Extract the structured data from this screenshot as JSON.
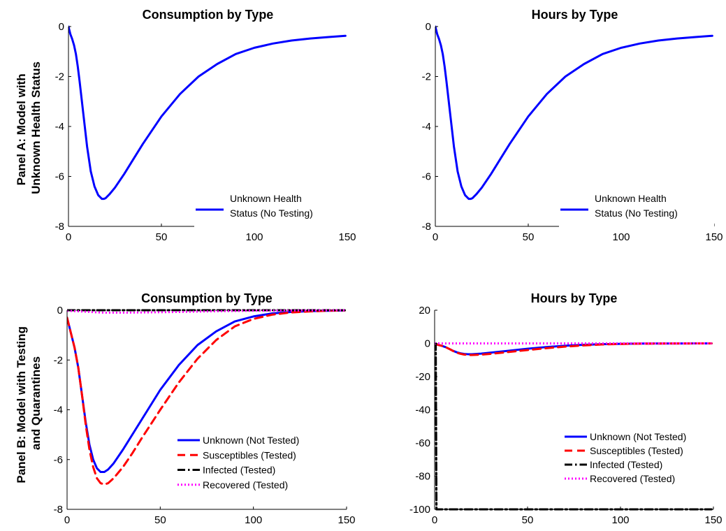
{
  "panel_labels": {
    "a": [
      "Panel A: Model with",
      "Unknown Health Status"
    ],
    "b": [
      "Panel B: Model with Testing",
      "and Quarantines"
    ]
  },
  "chart_data": [
    {
      "type": "line",
      "title": "Consumption by Type",
      "xlabel": "",
      "ylabel": "",
      "xlim": [
        0,
        150
      ],
      "ylim": [
        -8,
        0
      ],
      "xticks": [
        0,
        50,
        100,
        150
      ],
      "yticks": [
        0,
        -2,
        -4,
        -6,
        -8
      ],
      "grid": false,
      "legend": {
        "placement": "bottom-right"
      },
      "series": [
        {
          "name": "Unknown Health Status (No Testing)",
          "legend_lines": [
            "Unknown Health",
            "Status (No Testing)"
          ],
          "color": "#0000ff",
          "dash": "solid",
          "x": [
            0,
            1,
            2,
            3,
            4,
            5,
            6,
            8,
            10,
            12,
            14,
            16,
            18,
            19,
            20,
            22,
            25,
            30,
            35,
            40,
            50,
            60,
            70,
            80,
            90,
            100,
            110,
            120,
            130,
            140,
            149
          ],
          "y": [
            0,
            -0.3,
            -0.5,
            -0.75,
            -1.1,
            -1.6,
            -2.2,
            -3.5,
            -4.8,
            -5.8,
            -6.4,
            -6.75,
            -6.9,
            -6.9,
            -6.87,
            -6.72,
            -6.45,
            -5.9,
            -5.3,
            -4.7,
            -3.6,
            -2.7,
            -2.0,
            -1.5,
            -1.1,
            -0.85,
            -0.68,
            -0.56,
            -0.48,
            -0.42,
            -0.37
          ]
        }
      ]
    },
    {
      "type": "line",
      "title": "Hours by Type",
      "xlabel": "",
      "ylabel": "",
      "xlim": [
        0,
        150
      ],
      "ylim": [
        -8,
        0
      ],
      "xticks": [
        0,
        50,
        100,
        150
      ],
      "yticks": [
        0,
        -2,
        -4,
        -6,
        -8
      ],
      "grid": false,
      "legend": {
        "placement": "bottom-right"
      },
      "series": [
        {
          "name": "Unknown Health Status (No Testing)",
          "legend_lines": [
            "Unknown Health",
            "Status (No Testing)"
          ],
          "color": "#0000ff",
          "dash": "solid",
          "x": [
            0,
            1,
            2,
            3,
            4,
            5,
            6,
            8,
            10,
            12,
            14,
            16,
            18,
            19,
            20,
            22,
            25,
            30,
            35,
            40,
            50,
            60,
            70,
            80,
            90,
            100,
            110,
            120,
            130,
            140,
            149
          ],
          "y": [
            0,
            -0.3,
            -0.5,
            -0.75,
            -1.1,
            -1.6,
            -2.2,
            -3.5,
            -4.8,
            -5.8,
            -6.4,
            -6.75,
            -6.9,
            -6.9,
            -6.87,
            -6.72,
            -6.45,
            -5.9,
            -5.3,
            -4.7,
            -3.6,
            -2.7,
            -2.0,
            -1.5,
            -1.1,
            -0.85,
            -0.68,
            -0.56,
            -0.48,
            -0.42,
            -0.37
          ]
        }
      ]
    },
    {
      "type": "line",
      "title": "Consumption by Type",
      "xlabel": "",
      "ylabel": "",
      "xlim": [
        0,
        150
      ],
      "ylim": [
        -8,
        0
      ],
      "xticks": [
        0,
        50,
        100,
        150
      ],
      "yticks": [
        0,
        -2,
        -4,
        -6,
        -8
      ],
      "grid": false,
      "legend": {
        "placement": "bottom-right"
      },
      "series": [
        {
          "name": "Unknown (Not Tested)",
          "color": "#0000ff",
          "dash": "solid",
          "x": [
            0,
            1,
            2,
            4,
            6,
            8,
            10,
            12,
            14,
            16,
            18,
            20,
            22,
            25,
            30,
            35,
            40,
            50,
            60,
            70,
            80,
            90,
            100,
            110,
            120,
            130,
            140,
            149
          ],
          "y": [
            -0.3,
            -0.6,
            -0.9,
            -1.5,
            -2.3,
            -3.4,
            -4.5,
            -5.4,
            -6.0,
            -6.35,
            -6.5,
            -6.5,
            -6.4,
            -6.15,
            -5.6,
            -5.0,
            -4.4,
            -3.2,
            -2.2,
            -1.4,
            -0.85,
            -0.45,
            -0.25,
            -0.13,
            -0.07,
            -0.04,
            -0.02,
            -0.01
          ]
        },
        {
          "name": "Susceptibles (Tested)",
          "color": "#ff0000",
          "dash": "dashed",
          "x": [
            0,
            1,
            2,
            4,
            6,
            8,
            10,
            12,
            14,
            16,
            18,
            20,
            22,
            25,
            30,
            35,
            40,
            50,
            60,
            70,
            80,
            90,
            100,
            110,
            120,
            130,
            140,
            149
          ],
          "y": [
            -0.3,
            -0.6,
            -0.9,
            -1.5,
            -2.3,
            -3.4,
            -4.6,
            -5.6,
            -6.3,
            -6.75,
            -6.95,
            -7.0,
            -6.95,
            -6.75,
            -6.3,
            -5.75,
            -5.15,
            -4.0,
            -2.9,
            -1.95,
            -1.2,
            -0.65,
            -0.35,
            -0.18,
            -0.09,
            -0.05,
            -0.02,
            -0.01
          ]
        },
        {
          "name": "Infected (Tested)",
          "color": "#000000",
          "dash": "dashdot",
          "x": [
            0,
            149
          ],
          "y": [
            0,
            0
          ]
        },
        {
          "name": "Recovered (Tested)",
          "color": "#ff00ff",
          "dash": "dotted",
          "x": [
            0,
            10,
            20,
            30,
            40,
            60,
            80,
            100,
            120,
            149
          ],
          "y": [
            -0.02,
            -0.06,
            -0.1,
            -0.1,
            -0.09,
            -0.07,
            -0.04,
            -0.02,
            -0.01,
            0
          ]
        }
      ]
    },
    {
      "type": "line",
      "title": "Hours by Type",
      "xlabel": "",
      "ylabel": "",
      "xlim": [
        0,
        150
      ],
      "ylim": [
        -100,
        20
      ],
      "xticks": [
        0,
        50,
        100,
        150
      ],
      "yticks": [
        20,
        0,
        -20,
        -40,
        -60,
        -80,
        -100
      ],
      "grid": false,
      "legend": {
        "placement": "bottom-right"
      },
      "series": [
        {
          "name": "Unknown (Not Tested)",
          "color": "#0000ff",
          "dash": "solid",
          "x": [
            0,
            2,
            4,
            6,
            8,
            10,
            12,
            14,
            16,
            18,
            20,
            25,
            30,
            40,
            50,
            60,
            70,
            80,
            90,
            100,
            110,
            120,
            130,
            140,
            149
          ],
          "y": [
            -0.3,
            -0.9,
            -1.5,
            -2.3,
            -3.4,
            -4.5,
            -5.4,
            -6.0,
            -6.35,
            -6.5,
            -6.5,
            -6.15,
            -5.6,
            -4.4,
            -3.2,
            -2.2,
            -1.4,
            -0.85,
            -0.45,
            -0.25,
            -0.13,
            -0.07,
            -0.04,
            -0.02,
            -0.01
          ]
        },
        {
          "name": "Susceptibles (Tested)",
          "color": "#ff0000",
          "dash": "dashed",
          "x": [
            0,
            2,
            4,
            6,
            8,
            10,
            12,
            14,
            16,
            18,
            20,
            25,
            30,
            40,
            50,
            60,
            70,
            80,
            90,
            100,
            110,
            120,
            130,
            140,
            149
          ],
          "y": [
            -0.3,
            -0.9,
            -1.5,
            -2.3,
            -3.4,
            -4.6,
            -5.6,
            -6.3,
            -6.75,
            -6.95,
            -7.0,
            -6.75,
            -6.3,
            -5.15,
            -4.0,
            -2.9,
            -1.95,
            -1.2,
            -0.65,
            -0.35,
            -0.18,
            -0.09,
            -0.05,
            -0.02,
            -0.01
          ]
        },
        {
          "name": "Infected (Tested)",
          "color": "#000000",
          "dash": "dashdot",
          "x": [
            0,
            0.6,
            1,
            149
          ],
          "y": [
            0,
            0,
            -100,
            -100
          ]
        },
        {
          "name": "Recovered (Tested)",
          "color": "#ff00ff",
          "dash": "dotted",
          "x": [
            0,
            149
          ],
          "y": [
            0,
            0
          ]
        }
      ]
    }
  ]
}
